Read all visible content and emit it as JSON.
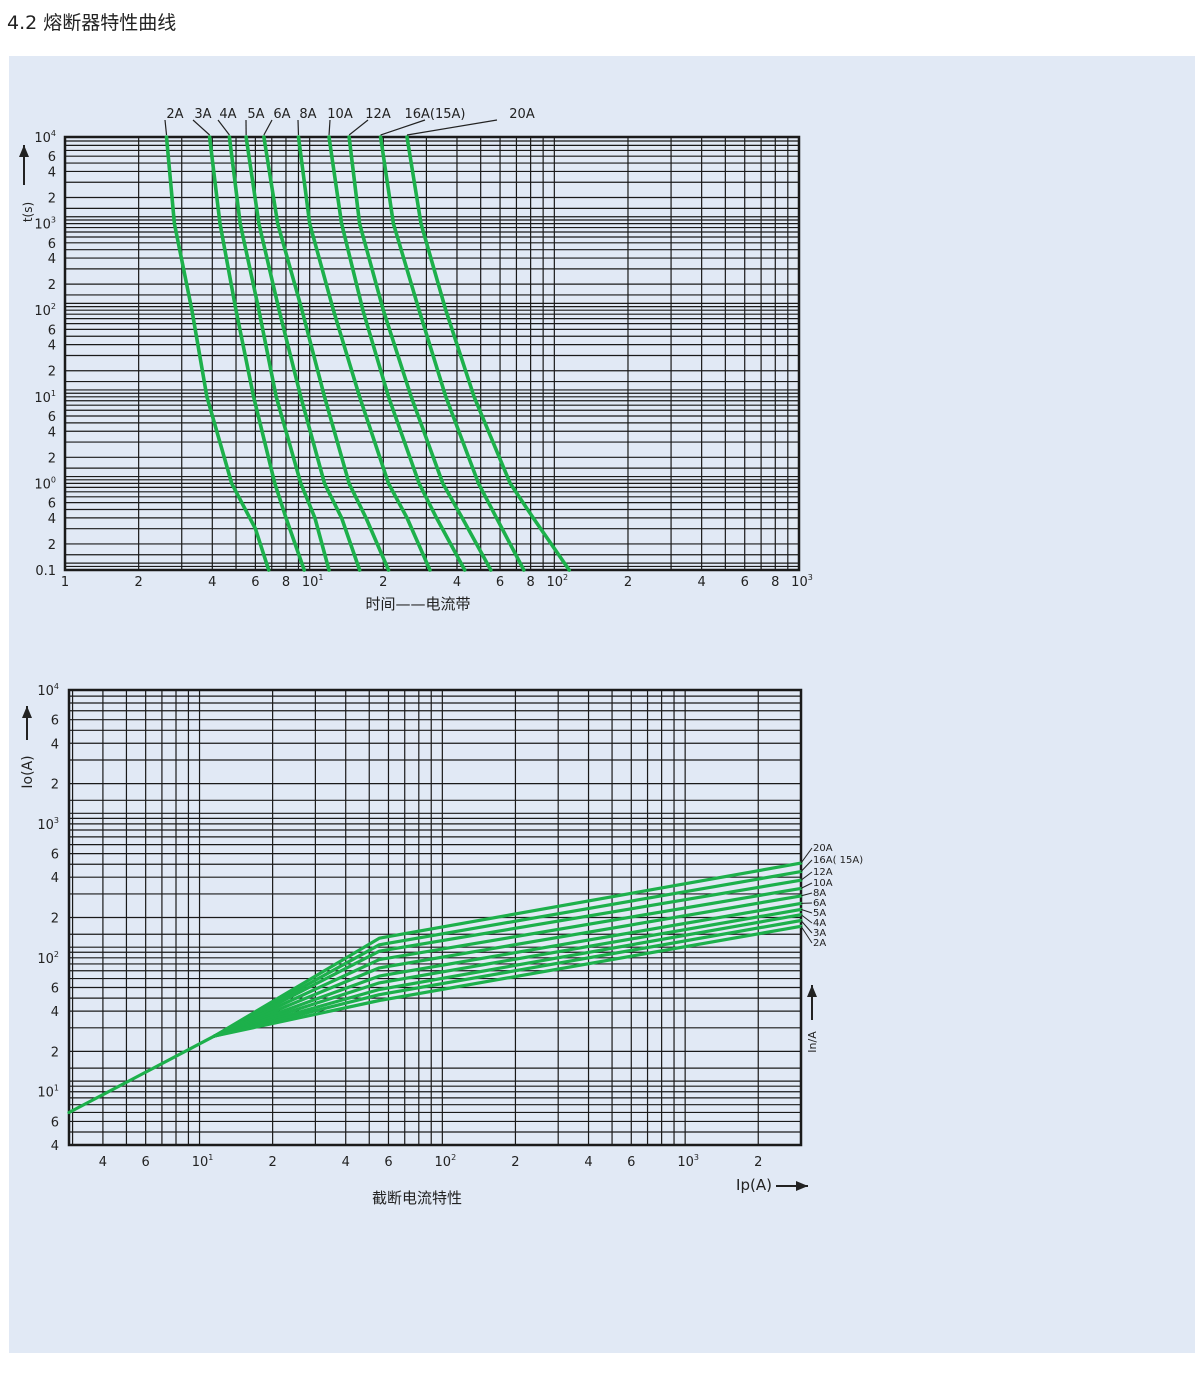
{
  "heading": "4.2 熔断器特性曲线",
  "colors": {
    "curve": "#1db04b",
    "grid": "#1a1a1a",
    "panel": "#e1e9f5",
    "text": "#222222"
  },
  "chart_data": [
    {
      "type": "line",
      "title": "",
      "xlabel": "时间——电流带",
      "ylabel": "t(s)",
      "x_scale": "log",
      "y_scale": "log",
      "xlim": [
        1,
        1000
      ],
      "ylim": [
        0.1,
        10000
      ],
      "x_ticks": [
        {
          "v": 1,
          "m": "1",
          "e": ""
        },
        {
          "v": 2,
          "m": "2",
          "e": ""
        },
        {
          "v": 4,
          "m": "4",
          "e": ""
        },
        {
          "v": 6,
          "m": "6",
          "e": ""
        },
        {
          "v": 8,
          "m": "8",
          "e": ""
        },
        {
          "v": 10,
          "m": "10",
          "e": "1"
        },
        {
          "v": 20,
          "m": "2",
          "e": ""
        },
        {
          "v": 40,
          "m": "4",
          "e": ""
        },
        {
          "v": 60,
          "m": "6",
          "e": ""
        },
        {
          "v": 80,
          "m": "8",
          "e": ""
        },
        {
          "v": 100,
          "m": "10",
          "e": "2"
        },
        {
          "v": 200,
          "m": "2",
          "e": ""
        },
        {
          "v": 400,
          "m": "4",
          "e": ""
        },
        {
          "v": 600,
          "m": "6",
          "e": ""
        },
        {
          "v": 800,
          "m": "8",
          "e": ""
        },
        {
          "v": 1000,
          "m": "10",
          "e": "3"
        }
      ],
      "y_ticks": [
        {
          "v": 0.1,
          "m": "0.1",
          "e": ""
        },
        {
          "v": 0.2,
          "m": "2",
          "e": ""
        },
        {
          "v": 0.4,
          "m": "4",
          "e": ""
        },
        {
          "v": 0.6,
          "m": "6",
          "e": ""
        },
        {
          "v": 1,
          "m": "10",
          "e": "0"
        },
        {
          "v": 2,
          "m": "2",
          "e": ""
        },
        {
          "v": 4,
          "m": "4",
          "e": ""
        },
        {
          "v": 6,
          "m": "6",
          "e": ""
        },
        {
          "v": 10,
          "m": "10",
          "e": "1"
        },
        {
          "v": 20,
          "m": "2",
          "e": ""
        },
        {
          "v": 40,
          "m": "4",
          "e": ""
        },
        {
          "v": 60,
          "m": "6",
          "e": ""
        },
        {
          "v": 100,
          "m": "10",
          "e": "2"
        },
        {
          "v": 200,
          "m": "2",
          "e": ""
        },
        {
          "v": 400,
          "m": "4",
          "e": ""
        },
        {
          "v": 600,
          "m": "6",
          "e": ""
        },
        {
          "v": 1000,
          "m": "10",
          "e": "3"
        },
        {
          "v": 2000,
          "m": "2",
          "e": ""
        },
        {
          "v": 4000,
          "m": "4",
          "e": ""
        },
        {
          "v": 6000,
          "m": "6",
          "e": ""
        },
        {
          "v": 10000,
          "m": "10",
          "e": "4"
        }
      ],
      "series": [
        {
          "name": "2A",
          "points": [
            [
              2.6,
              10000
            ],
            [
              2.8,
              1000
            ],
            [
              3.3,
              100
            ],
            [
              3.8,
              10
            ],
            [
              4.8,
              1
            ],
            [
              6.0,
              0.3
            ],
            [
              6.8,
              0.1
            ]
          ]
        },
        {
          "name": "3A",
          "points": [
            [
              3.9,
              10000
            ],
            [
              4.3,
              1000
            ],
            [
              5.0,
              100
            ],
            [
              5.9,
              10
            ],
            [
              7.2,
              1
            ],
            [
              8.0,
              0.4
            ],
            [
              9.5,
              0.1
            ]
          ]
        },
        {
          "name": "4A",
          "points": [
            [
              4.7,
              10000
            ],
            [
              5.2,
              1000
            ],
            [
              6.2,
              100
            ],
            [
              7.3,
              10
            ],
            [
              9.2,
              1
            ],
            [
              10.5,
              0.4
            ],
            [
              12.0,
              0.1
            ]
          ]
        },
        {
          "name": "5A",
          "points": [
            [
              5.5,
              10000
            ],
            [
              6.2,
              1000
            ],
            [
              7.5,
              100
            ],
            [
              9.2,
              10
            ],
            [
              11.5,
              1
            ],
            [
              13.5,
              0.4
            ],
            [
              16.0,
              0.1
            ]
          ]
        },
        {
          "name": "6A",
          "points": [
            [
              6.5,
              10000
            ],
            [
              7.4,
              1000
            ],
            [
              9.3,
              100
            ],
            [
              11.5,
              10
            ],
            [
              14.5,
              1
            ],
            [
              17.0,
              0.4
            ],
            [
              21.0,
              0.1
            ]
          ]
        },
        {
          "name": "8A",
          "points": [
            [
              9.0,
              10000
            ],
            [
              10.0,
              1000
            ],
            [
              12.5,
              100
            ],
            [
              16.0,
              10
            ],
            [
              21.0,
              1
            ],
            [
              25.0,
              0.4
            ],
            [
              31.0,
              0.1
            ]
          ]
        },
        {
          "name": "10A",
          "points": [
            [
              12.0,
              10000
            ],
            [
              13.5,
              1000
            ],
            [
              16.5,
              100
            ],
            [
              21.0,
              10
            ],
            [
              28.0,
              1
            ],
            [
              33.0,
              0.4
            ],
            [
              43.0,
              0.1
            ]
          ]
        },
        {
          "name": "12A",
          "points": [
            [
              14.5,
              10000
            ],
            [
              16.0,
              1000
            ],
            [
              20.0,
              100
            ],
            [
              26.0,
              10
            ],
            [
              35.0,
              1
            ],
            [
              42.0,
              0.4
            ],
            [
              55.0,
              0.1
            ]
          ]
        },
        {
          "name": "16A(15A)",
          "points": [
            [
              19.5,
              10000
            ],
            [
              22.0,
              1000
            ],
            [
              28.0,
              100
            ],
            [
              36.0,
              10
            ],
            [
              49.0,
              1
            ],
            [
              58.0,
              0.4
            ],
            [
              75.0,
              0.1
            ]
          ]
        },
        {
          "name": "20A",
          "points": [
            [
              25.0,
              10000
            ],
            [
              28.5,
              1000
            ],
            [
              36.0,
              100
            ],
            [
              47.0,
              10
            ],
            [
              66.0,
              1
            ],
            [
              82.0,
              0.4
            ],
            [
              115.0,
              0.1
            ]
          ]
        }
      ]
    },
    {
      "type": "line",
      "title": "截断电流特性",
      "xlabel": "Ip(A)",
      "ylabel": "Io(A)",
      "series_axis_label": "In/A",
      "x_scale": "log",
      "y_scale": "log",
      "xlim": [
        2.9,
        3000
      ],
      "ylim": [
        4,
        10000
      ],
      "x_ticks": [
        {
          "v": 4,
          "m": "4",
          "e": ""
        },
        {
          "v": 6,
          "m": "6",
          "e": ""
        },
        {
          "v": 10,
          "m": "10",
          "e": "1"
        },
        {
          "v": 20,
          "m": "2",
          "e": ""
        },
        {
          "v": 40,
          "m": "4",
          "e": ""
        },
        {
          "v": 60,
          "m": "6",
          "e": ""
        },
        {
          "v": 100,
          "m": "10",
          "e": "2"
        },
        {
          "v": 200,
          "m": "2",
          "e": ""
        },
        {
          "v": 400,
          "m": "4",
          "e": ""
        },
        {
          "v": 600,
          "m": "6",
          "e": ""
        },
        {
          "v": 1000,
          "m": "10",
          "e": "3"
        },
        {
          "v": 2000,
          "m": "2",
          "e": ""
        }
      ],
      "y_ticks": [
        {
          "v": 4,
          "m": "4",
          "e": ""
        },
        {
          "v": 6,
          "m": "6",
          "e": ""
        },
        {
          "v": 10,
          "m": "10",
          "e": "1"
        },
        {
          "v": 20,
          "m": "2",
          "e": ""
        },
        {
          "v": 40,
          "m": "4",
          "e": ""
        },
        {
          "v": 60,
          "m": "6",
          "e": ""
        },
        {
          "v": 100,
          "m": "10",
          "e": "2"
        },
        {
          "v": 200,
          "m": "2",
          "e": ""
        },
        {
          "v": 400,
          "m": "4",
          "e": ""
        },
        {
          "v": 600,
          "m": "6",
          "e": ""
        },
        {
          "v": 1000,
          "m": "10",
          "e": "3"
        },
        {
          "v": 2000,
          "m": "2",
          "e": ""
        },
        {
          "v": 4000,
          "m": "4",
          "e": ""
        },
        {
          "v": 6000,
          "m": "6",
          "e": ""
        },
        {
          "v": 10000,
          "m": "10",
          "e": "4"
        }
      ],
      "series": [
        {
          "name": "20A",
          "points": [
            [
              2.9,
              7
            ],
            [
              11.5,
              26
            ],
            [
              55,
              140
            ],
            [
              3000,
              510
            ]
          ]
        },
        {
          "name": "16A( 15A)",
          "points": [
            [
              11.5,
              26
            ],
            [
              55,
              125
            ],
            [
              3000,
              440
            ]
          ]
        },
        {
          "name": "12A",
          "points": [
            [
              11.5,
              26
            ],
            [
              55,
              112
            ],
            [
              3000,
              380
            ]
          ]
        },
        {
          "name": "10A",
          "points": [
            [
              11.5,
              26
            ],
            [
              55,
              97
            ],
            [
              3000,
              330
            ]
          ]
        },
        {
          "name": "8A",
          "points": [
            [
              11.5,
              26
            ],
            [
              55,
              84
            ],
            [
              3000,
              290
            ]
          ]
        },
        {
          "name": "6A",
          "points": [
            [
              11.5,
              26
            ],
            [
              55,
              73
            ],
            [
              3000,
              255
            ]
          ]
        },
        {
          "name": "5A",
          "points": [
            [
              11.5,
              26
            ],
            [
              55,
              65
            ],
            [
              3000,
              230
            ]
          ]
        },
        {
          "name": "4A",
          "points": [
            [
              11.5,
              26
            ],
            [
              55,
              58
            ],
            [
              3000,
              210
            ]
          ]
        },
        {
          "name": "3A",
          "points": [
            [
              11.5,
              26
            ],
            [
              55,
              53
            ],
            [
              3000,
              190
            ]
          ]
        },
        {
          "name": "2A",
          "points": [
            [
              11.5,
              26
            ],
            [
              55,
              48
            ],
            [
              3000,
              172
            ]
          ]
        }
      ]
    }
  ]
}
